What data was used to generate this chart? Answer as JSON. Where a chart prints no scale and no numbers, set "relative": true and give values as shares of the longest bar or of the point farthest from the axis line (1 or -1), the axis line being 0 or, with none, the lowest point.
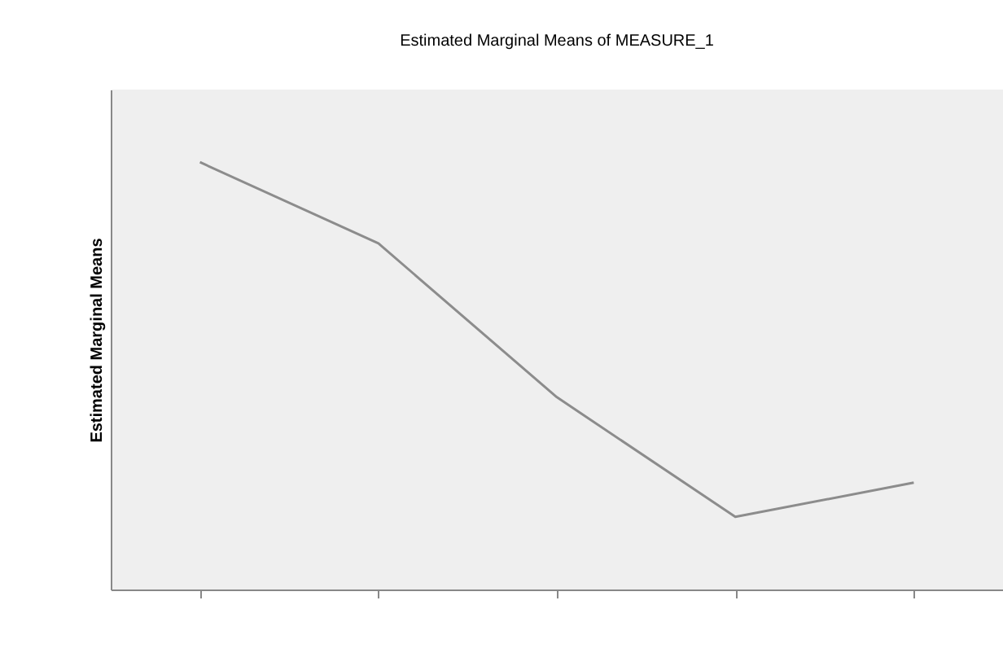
{
  "chart_data": {
    "type": "line",
    "title": "Estimated Marginal Means of MEASURE_1",
    "ylabel": "Estimated Marginal Means",
    "relative": true,
    "categories": [
      null,
      null,
      null,
      null,
      null
    ],
    "series": [
      {
        "color": "#8c8c8c",
        "values": [
          1,
          0.81,
          0.45,
          0.17,
          0.25
        ]
      }
    ]
  }
}
